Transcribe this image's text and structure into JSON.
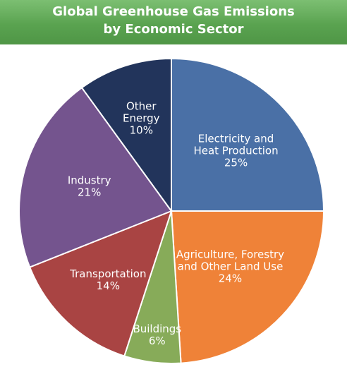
{
  "header": {
    "title_line1": "Global Greenhouse Gas Emissions",
    "title_line2": "by Economic Sector"
  },
  "chart_data": {
    "type": "pie",
    "title": "Global Greenhouse Gas Emissions by Economic Sector",
    "unit": "%",
    "slices": [
      {
        "label_lines": [
          "Electricity and",
          "Heat Production"
        ],
        "value": 25,
        "display": "25%",
        "color": "#4a70a6"
      },
      {
        "label_lines": [
          "Agriculture, Forestry",
          "and Other Land Use"
        ],
        "value": 24,
        "display": "24%",
        "color": "#ef8238"
      },
      {
        "label_lines": [
          "Buildings"
        ],
        "value": 6,
        "display": "6%",
        "color": "#87ab59"
      },
      {
        "label_lines": [
          "Transportation"
        ],
        "value": 14,
        "display": "14%",
        "color": "#a94443"
      },
      {
        "label_lines": [
          "Industry"
        ],
        "value": 21,
        "display": "21%",
        "color": "#74548e"
      },
      {
        "label_lines": [
          "Other",
          "Energy"
        ],
        "value": 10,
        "display": "10%",
        "color": "#22345b"
      }
    ]
  }
}
